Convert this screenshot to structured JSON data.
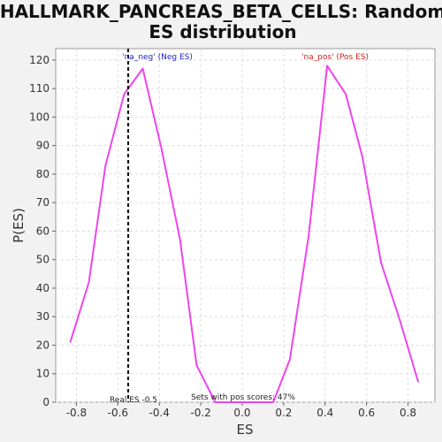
{
  "chart_data": {
    "type": "line",
    "title_line1": "HALLMARK_PANCREAS_BETA_CELLS: Random",
    "title_line2": "ES distribution",
    "xlabel": "ES",
    "ylabel": "P(ES)",
    "xlim": [
      -0.9,
      0.93
    ],
    "ylim": [
      0,
      124
    ],
    "x_ticks": [
      -0.8,
      -0.6,
      -0.4,
      -0.2,
      0.0,
      0.2,
      0.4,
      0.6,
      0.8
    ],
    "x_tick_labels": [
      "-0.8",
      "-0.6",
      "-0.4",
      "-0.2",
      "0.0",
      "0.2",
      "0.4",
      "0.6",
      "0.8"
    ],
    "y_ticks": [
      0,
      10,
      20,
      30,
      40,
      50,
      60,
      70,
      80,
      90,
      100,
      110,
      120
    ],
    "y_tick_labels": [
      "0",
      "10",
      "20",
      "30",
      "40",
      "50",
      "60",
      "70",
      "80",
      "90",
      "100",
      "110",
      "120"
    ],
    "grid": true,
    "line_color": "#ee44ee",
    "series": [
      {
        "x": [
          -0.83,
          -0.74,
          -0.66,
          -0.57,
          -0.48,
          -0.39,
          -0.3,
          -0.22,
          -0.13,
          -0.05,
          0.04,
          0.15,
          0.23,
          0.32,
          0.41,
          0.5,
          0.58,
          0.67,
          0.76,
          0.85
        ],
        "y": [
          21,
          42,
          83,
          108,
          117,
          89,
          57,
          13,
          0,
          0,
          0,
          0,
          15,
          58,
          118,
          108,
          86,
          49,
          29,
          7
        ]
      }
    ],
    "real_es": {
      "x": -0.55,
      "label": "Real ES -0.5",
      "color": "#000000"
    },
    "annotations": {
      "neg": "'na_neg' (Neg ES)",
      "pos": "'na_pos' (Pos ES)",
      "pos_scores": "Sets with pos scores: 47%"
    }
  }
}
